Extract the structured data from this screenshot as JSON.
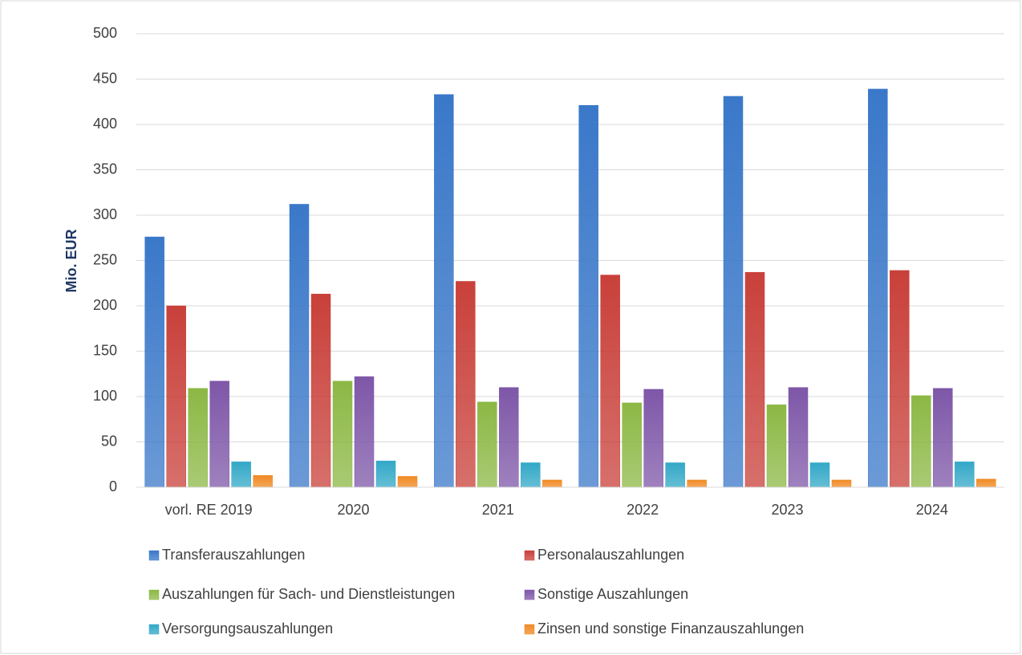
{
  "chart_data": {
    "type": "bar",
    "y_label": "Mio. EUR",
    "categories": [
      "vorl. RE 2019",
      "2020",
      "2021",
      "2022",
      "2023",
      "2024"
    ],
    "series": [
      {
        "name": "Transferauszahlungen",
        "color": "#3a78c9",
        "values": [
          276,
          312,
          433,
          421,
          431,
          439
        ]
      },
      {
        "name": "Personalauszahlungen",
        "color": "#c9403a",
        "values": [
          200,
          213,
          227,
          234,
          237,
          239
        ]
      },
      {
        "name": "Auszahlungen für Sach- und Dienstleistungen",
        "color": "#8cb845",
        "values": [
          109,
          117,
          94,
          93,
          91,
          101
        ]
      },
      {
        "name": "Sonstige Auszahlungen",
        "color": "#7e57a8",
        "values": [
          117,
          122,
          110,
          108,
          110,
          109
        ]
      },
      {
        "name": "Versorgungsauszahlungen",
        "color": "#33a8c7",
        "values": [
          28,
          29,
          27,
          27,
          27,
          28
        ]
      },
      {
        "name": "Zinsen und sonstige Finanzauszahlungen",
        "color": "#f08a24",
        "values": [
          13,
          12,
          8,
          8,
          8,
          9
        ]
      }
    ],
    "ylim": [
      0,
      500
    ],
    "yticks": [
      0,
      50,
      100,
      150,
      200,
      250,
      300,
      350,
      400,
      450,
      500
    ],
    "grid": true,
    "legend": "bottom"
  }
}
